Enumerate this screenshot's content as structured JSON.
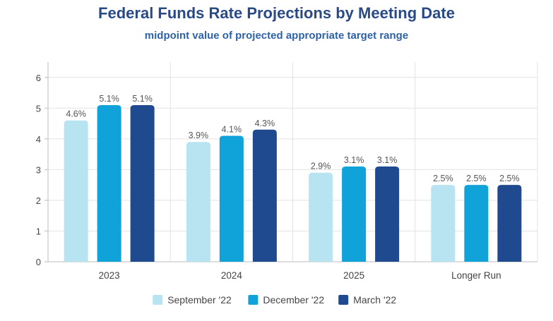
{
  "chart_data": {
    "type": "bar",
    "title": "Federal Funds Rate Projections by Meeting Date",
    "subtitle": "midpoint value of projected appropriate target range",
    "xlabel": "",
    "ylabel": "",
    "categories": [
      "2023",
      "2024",
      "2025",
      "Longer Run"
    ],
    "series": [
      {
        "name": "September '22",
        "values": [
          4.6,
          3.9,
          2.9,
          2.5
        ],
        "labels": [
          "4.6%",
          "3.9%",
          "2.9%",
          "2.5%"
        ],
        "color": "#b8e3f0"
      },
      {
        "name": "December '22",
        "values": [
          5.1,
          4.1,
          3.1,
          2.5
        ],
        "labels": [
          "5.1%",
          "4.1%",
          "3.1%",
          "2.5%"
        ],
        "color": "#0fa3d9"
      },
      {
        "name": "March '22",
        "values": [
          5.1,
          4.3,
          3.1,
          2.5
        ],
        "labels": [
          "5.1%",
          "4.3%",
          "3.1%",
          "2.5%"
        ],
        "color": "#1f4a8f"
      }
    ],
    "ylim": [
      0,
      6.5
    ],
    "yticks": [
      "0",
      "1",
      "2",
      "3",
      "4",
      "5",
      "6"
    ],
    "grid": true,
    "legend": "bottom"
  }
}
